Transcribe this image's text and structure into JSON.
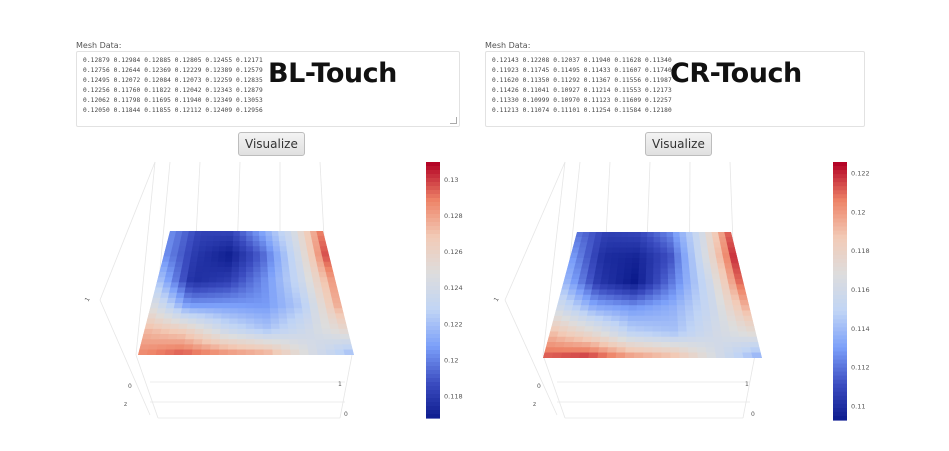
{
  "left": {
    "mesh_label": "Mesh Data:",
    "mesh_rows": [
      "0.12879 0.12984 0.12885 0.12805 0.12455 0.12171",
      "0.12756 0.12644 0.12369 0.12229 0.12389 0.12579",
      "0.12495 0.12072 0.12084 0.12073 0.12259 0.12835",
      "0.12256 0.11760 0.11822 0.12042 0.12343 0.12879",
      "0.12062 0.11798 0.11695 0.11940 0.12349 0.13053",
      "0.12050 0.11844 0.11855 0.12112 0.12409 0.12956"
    ],
    "title": "BL-Touch",
    "button_label": "Visualize",
    "colorbar_ticks": [
      "0.13",
      "0.128",
      "0.126",
      "0.124",
      "0.122",
      "0.12",
      "0.118"
    ],
    "colorbar_range": [
      0.1168,
      0.131
    ],
    "axis_ticks": {
      "z": "z",
      "y0": "0",
      "y1": "1",
      "x0": "0",
      "x1": "1"
    }
  },
  "right": {
    "mesh_label": "Mesh Data:",
    "mesh_rows": [
      "0.12143 0.12208 0.12037 0.11940 0.11628 0.11340",
      "0.11923 0.11745 0.11495 0.11433 0.11607 0.11740",
      "0.11620 0.11350 0.11292 0.11367 0.11556 0.11987",
      "0.11426 0.11041 0.10927 0.11214 0.11553 0.12173",
      "0.11330 0.10999 0.10970 0.11123 0.11609 0.12257",
      "0.11213 0.11074 0.11101 0.11254 0.11584 0.12180"
    ],
    "title": "CR-Touch",
    "button_label": "Visualize",
    "colorbar_ticks": [
      "0.122",
      "0.12",
      "0.118",
      "0.116",
      "0.114",
      "0.112",
      "0.11"
    ],
    "colorbar_range": [
      0.1093,
      0.1226
    ],
    "axis_ticks": {
      "z": "z",
      "y0": "0",
      "y1": "1",
      "x0": "0",
      "x1": "1"
    }
  },
  "colors": {
    "colormap": [
      "#0b1a8c",
      "#3b4cc0",
      "#7b9ff9",
      "#c0d4f5",
      "#dddddd",
      "#f2cbb7",
      "#ee8468",
      "#b40426"
    ]
  }
}
